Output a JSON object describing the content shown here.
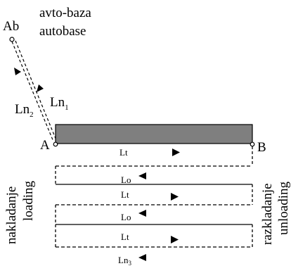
{
  "points": {
    "depot_abbr": "Ab",
    "depot_name_local": "avto-baza",
    "depot_name_en": "autobase",
    "point_a": "A",
    "point_b": "B"
  },
  "route_labels": {
    "ln2": "Ln",
    "ln2_sub": "2",
    "ln1": "Ln",
    "ln1_sub": "1",
    "ln3": "Ln",
    "ln3_sub": "3",
    "lt": "Lt",
    "lo": "Lo"
  },
  "side_labels": {
    "loading_local": "nakladanje",
    "loading_en": "loading",
    "unloading_local": "razkladanje",
    "unloading_en": "unloading"
  },
  "colors": {
    "road_fill": "#7f7f7f",
    "line": "#000000"
  }
}
